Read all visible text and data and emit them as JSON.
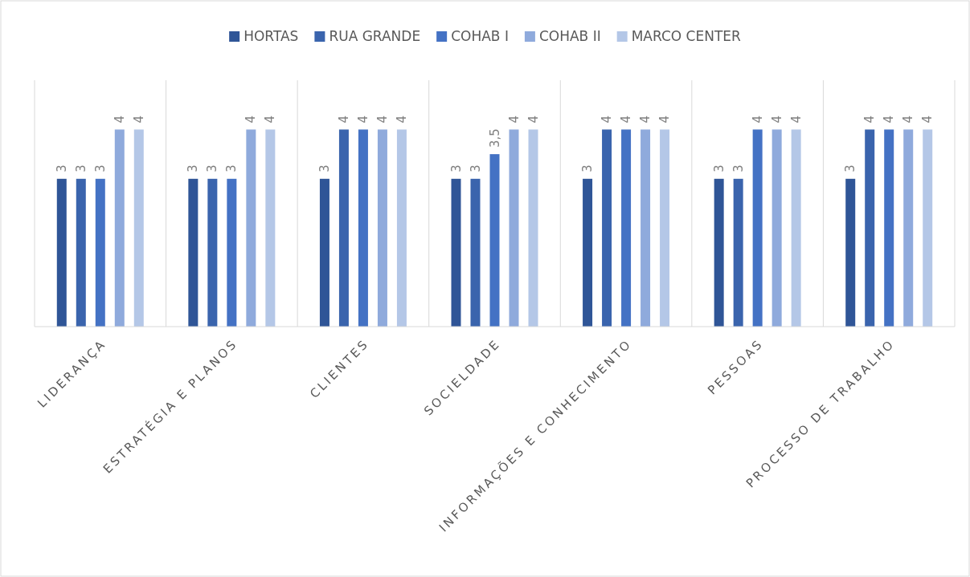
{
  "chart_data": {
    "type": "bar",
    "categories": [
      "LIDERANÇA",
      "ESTRATÉGIA E PLANOS",
      "CLIENTES",
      "SOCIELDADE",
      "INFORMAÇÕES E CONHECIMENTO",
      "PESSOAS",
      "PROCESSO DE TRABALHO"
    ],
    "series": [
      {
        "name": "HORTAS",
        "color": "#2f5597",
        "values": [
          3,
          3,
          3,
          3,
          3,
          3,
          3
        ],
        "value_labels": [
          "3",
          "3",
          "3",
          "3",
          "3",
          "3",
          "3"
        ]
      },
      {
        "name": "RUA GRANDE",
        "color": "#3a64ad",
        "values": [
          3,
          3,
          4,
          3,
          4,
          3,
          4
        ],
        "value_labels": [
          "3",
          "3",
          "4",
          "3",
          "4",
          "3",
          "4"
        ]
      },
      {
        "name": "COHAB I",
        "color": "#4472c4",
        "values": [
          3,
          3,
          4,
          3.5,
          4,
          4,
          4
        ],
        "value_labels": [
          "3",
          "3",
          "4",
          "3,5",
          "4",
          "4",
          "4"
        ]
      },
      {
        "name": "COHAB II",
        "color": "#8faadc",
        "values": [
          4,
          4,
          4,
          4,
          4,
          4,
          4
        ],
        "value_labels": [
          "4",
          "4",
          "4",
          "4",
          "4",
          "4",
          "4"
        ]
      },
      {
        "name": "MARCO CENTER",
        "color": "#b4c7e7",
        "values": [
          4,
          4,
          4,
          4,
          4,
          4,
          4
        ],
        "value_labels": [
          "4",
          "4",
          "4",
          "4",
          "4",
          "4",
          "4"
        ]
      }
    ],
    "ylim": [
      0,
      5
    ],
    "grid": "x",
    "legend": "top"
  }
}
